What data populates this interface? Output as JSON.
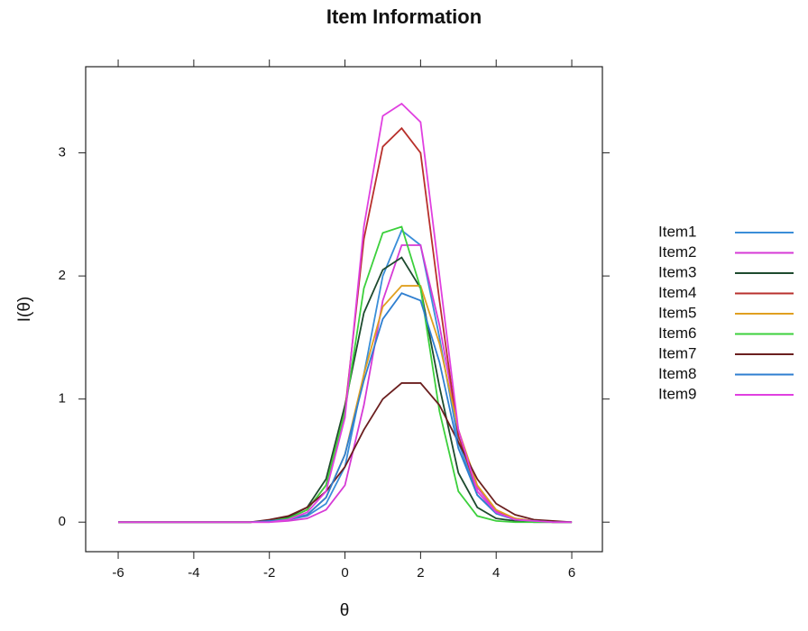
{
  "chart_data": {
    "type": "line",
    "title": "Item Information",
    "x_label": "θ",
    "y_label": "I(θ)",
    "x": [
      -6,
      -5.5,
      -5,
      -4.5,
      -4,
      -3.5,
      -3,
      -2.5,
      -2,
      -1.5,
      -1,
      -0.5,
      0,
      0.5,
      1,
      1.5,
      2,
      2.5,
      3,
      3.5,
      4,
      4.5,
      5,
      5.5,
      6
    ],
    "series": [
      {
        "name": "Item1",
        "color": "#3a8ed8",
        "values": [
          0,
          0,
          0,
          0,
          0,
          0,
          0,
          0,
          0.01,
          0.02,
          0.05,
          0.15,
          0.45,
          1.2,
          2.0,
          2.37,
          2.25,
          1.5,
          0.65,
          0.22,
          0.07,
          0.02,
          0.01,
          0,
          0
        ]
      },
      {
        "name": "Item2",
        "color": "#d63ad6",
        "values": [
          0,
          0,
          0,
          0,
          0,
          0,
          0,
          0,
          0,
          0.01,
          0.03,
          0.1,
          0.3,
          0.95,
          1.8,
          2.25,
          2.25,
          1.6,
          0.75,
          0.28,
          0.09,
          0.03,
          0.01,
          0,
          0
        ]
      },
      {
        "name": "Item3",
        "color": "#1d4a2e",
        "values": [
          0,
          0,
          0,
          0,
          0,
          0,
          0,
          0,
          0.01,
          0.04,
          0.12,
          0.35,
          0.95,
          1.7,
          2.05,
          2.15,
          1.9,
          1.1,
          0.4,
          0.12,
          0.03,
          0.01,
          0,
          0,
          0
        ]
      },
      {
        "name": "Item4",
        "color": "#b8302c",
        "values": [
          0,
          0,
          0,
          0,
          0,
          0,
          0,
          0,
          0.01,
          0.03,
          0.1,
          0.3,
          0.9,
          2.3,
          3.05,
          3.2,
          3.0,
          1.8,
          0.7,
          0.25,
          0.08,
          0.03,
          0.01,
          0,
          0
        ]
      },
      {
        "name": "Item5",
        "color": "#e0a020",
        "values": [
          0,
          0,
          0,
          0,
          0,
          0,
          0,
          0,
          0.01,
          0.02,
          0.06,
          0.2,
          0.55,
          1.2,
          1.75,
          1.92,
          1.92,
          1.45,
          0.75,
          0.3,
          0.1,
          0.03,
          0.01,
          0,
          0
        ]
      },
      {
        "name": "Item6",
        "color": "#3cd03c",
        "values": [
          0,
          0,
          0,
          0,
          0,
          0,
          0,
          0,
          0.01,
          0.03,
          0.1,
          0.3,
          0.9,
          1.9,
          2.35,
          2.4,
          1.9,
          0.9,
          0.25,
          0.05,
          0.01,
          0,
          0,
          0,
          0
        ]
      },
      {
        "name": "Item7",
        "color": "#6b1f1f",
        "values": [
          0,
          0,
          0,
          0,
          0,
          0,
          0,
          0,
          0.02,
          0.05,
          0.12,
          0.25,
          0.45,
          0.75,
          1.0,
          1.13,
          1.13,
          0.95,
          0.65,
          0.35,
          0.15,
          0.06,
          0.02,
          0.01,
          0
        ]
      },
      {
        "name": "Item8",
        "color": "#2f7fd0",
        "values": [
          0,
          0,
          0,
          0,
          0,
          0,
          0,
          0,
          0.01,
          0.02,
          0.06,
          0.2,
          0.55,
          1.15,
          1.65,
          1.86,
          1.8,
          1.3,
          0.6,
          0.22,
          0.07,
          0.02,
          0.01,
          0,
          0
        ]
      },
      {
        "name": "Item9",
        "color": "#e040e0",
        "values": [
          0,
          0,
          0,
          0,
          0,
          0,
          0,
          0,
          0,
          0.02,
          0.08,
          0.25,
          0.85,
          2.4,
          3.3,
          3.4,
          3.25,
          2.0,
          0.75,
          0.25,
          0.08,
          0.02,
          0.01,
          0,
          0
        ]
      }
    ],
    "xlim": [
      -6.86,
      6.81
    ],
    "ylim": [
      -0.24,
      3.7
    ],
    "xticks": [
      -6,
      -4,
      -2,
      0,
      2,
      4,
      6
    ],
    "yticks": [
      0,
      1,
      2,
      3
    ],
    "legend": "right"
  }
}
